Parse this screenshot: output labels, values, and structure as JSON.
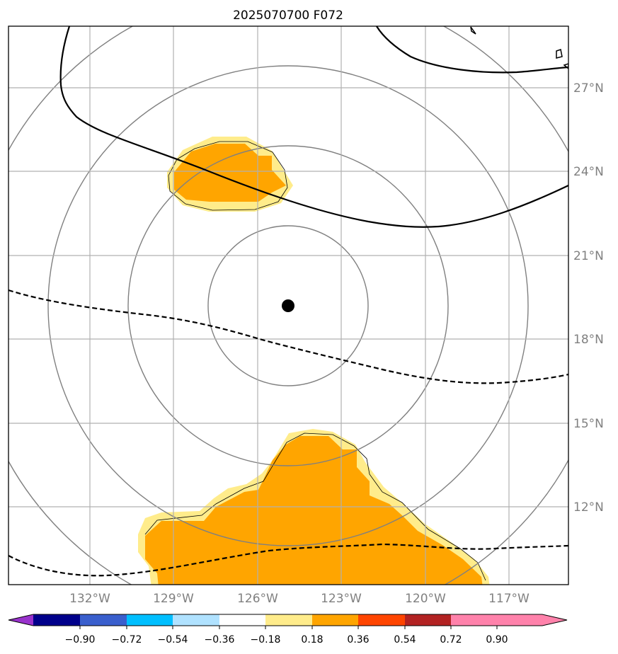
{
  "title": "2025070700 F072",
  "map": {
    "lat_ticks": [
      "27°N",
      "24°N",
      "21°N",
      "18°N",
      "15°N",
      "12°N"
    ],
    "lon_ticks": [
      "132°W",
      "129°W",
      "126°W",
      "123°W",
      "120°W",
      "117°W"
    ],
    "center_marker": {
      "lon": "124.9°W",
      "lat": "19.2°N"
    },
    "range_rings_count": 4,
    "contour_style": {
      "positive": "solid black",
      "negative": "dashed black"
    },
    "gridline_color": "#b0b0b0",
    "ring_color": "#808080"
  },
  "colorbar": {
    "tick_labels": [
      "−0.90",
      "−0.72",
      "−0.54",
      "−0.36",
      "−0.18",
      "0.18",
      "0.36",
      "0.54",
      "0.72",
      "0.90"
    ],
    "colors": [
      "#9932cc",
      "#00008b",
      "#3a5fcd",
      "#00bfff",
      "#b0e2ff",
      "#ffffff",
      "#ffec8b",
      "#ffa500",
      "#ff4500",
      "#b22222",
      "#ff82ab"
    ],
    "extend": "both"
  },
  "fills": [
    {
      "name": "north-anomaly-patch",
      "level": "0.36-0.54"
    },
    {
      "name": "south-anomaly-patch",
      "level": "0.36-0.54"
    }
  ]
}
